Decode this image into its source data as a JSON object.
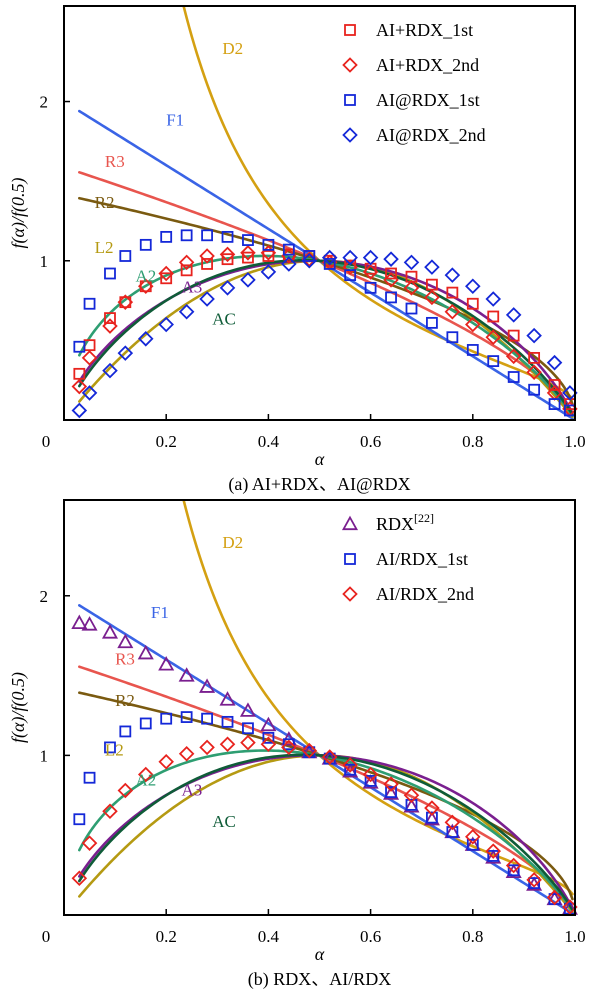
{
  "chart_data": [
    {
      "type": "line",
      "subcaption": "(a) AI+RDX、AI@RDX",
      "xlabel": "α",
      "ylabel": "f(α)/f(0.5)",
      "xlim": [
        0,
        1.0
      ],
      "ylim": [
        0,
        2.6
      ],
      "x_ticks": [
        {
          "v": 0,
          "t": "0"
        },
        {
          "v": 0.2,
          "t": "0.2"
        },
        {
          "v": 0.4,
          "t": "0.4"
        },
        {
          "v": 0.6,
          "t": "0.6"
        },
        {
          "v": 0.8,
          "t": "0.8"
        },
        {
          "v": 1.0,
          "t": "1.0"
        }
      ],
      "y_ticks": [
        {
          "v": 1,
          "t": "1"
        },
        {
          "v": 2,
          "t": "2"
        }
      ],
      "legend_position": "top-right",
      "model_curves": [
        {
          "name": "D2",
          "color": "#d4a012",
          "label_x": 0.31,
          "label_y": 2.3
        },
        {
          "name": "F1",
          "color": "#3a64e6",
          "label_x": 0.2,
          "label_y": 1.85
        },
        {
          "name": "R3",
          "color": "#e8554e",
          "label_x": 0.08,
          "label_y": 1.59
        },
        {
          "name": "R2",
          "color": "#7a5a10",
          "label_x": 0.06,
          "label_y": 1.33
        },
        {
          "name": "L2",
          "color": "#b59a12",
          "label_x": 0.06,
          "label_y": 1.05
        },
        {
          "name": "A2",
          "color": "#2e9e72",
          "label_x": 0.14,
          "label_y": 0.87
        },
        {
          "name": "A3",
          "color": "#7a1f8f",
          "label_x": 0.23,
          "label_y": 0.8
        },
        {
          "name": "AC",
          "color": "#0f5c38",
          "label_x": 0.29,
          "label_y": 0.6
        }
      ],
      "series": [
        {
          "name": "AI+RDX_1st",
          "marker": "square",
          "color": "#e8231e",
          "x": [
            0.03,
            0.05,
            0.09,
            0.12,
            0.16,
            0.2,
            0.24,
            0.28,
            0.32,
            0.36,
            0.4,
            0.44,
            0.48,
            0.52,
            0.56,
            0.6,
            0.64,
            0.68,
            0.72,
            0.76,
            0.8,
            0.84,
            0.88,
            0.92,
            0.96,
            0.99
          ],
          "y": [
            0.29,
            0.47,
            0.64,
            0.74,
            0.84,
            0.89,
            0.94,
            0.98,
            1.01,
            1.02,
            1.03,
            1.04,
            1.03,
            1.0,
            0.97,
            0.95,
            0.92,
            0.9,
            0.85,
            0.8,
            0.73,
            0.65,
            0.53,
            0.39,
            0.22,
            0.1
          ]
        },
        {
          "name": "AI+RDX_2nd",
          "marker": "diamond",
          "color": "#e8231e",
          "x": [
            0.03,
            0.05,
            0.09,
            0.12,
            0.16,
            0.2,
            0.24,
            0.28,
            0.32,
            0.36,
            0.4,
            0.44,
            0.48,
            0.52,
            0.56,
            0.6,
            0.64,
            0.68,
            0.72,
            0.76,
            0.8,
            0.84,
            0.88,
            0.92,
            0.96,
            0.99
          ],
          "y": [
            0.21,
            0.39,
            0.59,
            0.74,
            0.84,
            0.92,
            0.99,
            1.03,
            1.04,
            1.05,
            1.05,
            1.03,
            1.01,
            0.99,
            0.96,
            0.93,
            0.88,
            0.83,
            0.77,
            0.68,
            0.6,
            0.52,
            0.4,
            0.3,
            0.17,
            0.07
          ]
        },
        {
          "name": "AI@RDX_1st",
          "marker": "square",
          "color": "#1428d8",
          "x": [
            0.03,
            0.05,
            0.09,
            0.12,
            0.16,
            0.2,
            0.24,
            0.28,
            0.32,
            0.36,
            0.4,
            0.44,
            0.48,
            0.52,
            0.56,
            0.6,
            0.64,
            0.68,
            0.72,
            0.76,
            0.8,
            0.84,
            0.88,
            0.92,
            0.96,
            0.99
          ],
          "y": [
            0.46,
            0.73,
            0.92,
            1.03,
            1.1,
            1.15,
            1.16,
            1.16,
            1.15,
            1.13,
            1.1,
            1.07,
            1.03,
            0.98,
            0.91,
            0.83,
            0.77,
            0.7,
            0.61,
            0.52,
            0.44,
            0.37,
            0.27,
            0.19,
            0.1,
            0.06
          ]
        },
        {
          "name": "AI@RDX_2nd",
          "marker": "diamond",
          "color": "#1428d8",
          "x": [
            0.03,
            0.05,
            0.09,
            0.12,
            0.16,
            0.2,
            0.24,
            0.28,
            0.32,
            0.36,
            0.4,
            0.44,
            0.48,
            0.52,
            0.56,
            0.6,
            0.64,
            0.68,
            0.72,
            0.76,
            0.8,
            0.84,
            0.88,
            0.92,
            0.96,
            0.99
          ],
          "y": [
            0.06,
            0.17,
            0.31,
            0.42,
            0.51,
            0.6,
            0.68,
            0.76,
            0.83,
            0.88,
            0.93,
            0.98,
            1.0,
            1.02,
            1.02,
            1.02,
            1.01,
            0.99,
            0.96,
            0.91,
            0.84,
            0.76,
            0.66,
            0.53,
            0.36,
            0.17
          ]
        }
      ]
    },
    {
      "type": "line",
      "subcaption": "(b) RDX、AI/RDX",
      "xlabel": "α",
      "ylabel": "f(α)/f(0.5)",
      "xlim": [
        0,
        1.0
      ],
      "ylim": [
        0,
        2.6
      ],
      "x_ticks": [
        {
          "v": 0,
          "t": "0"
        },
        {
          "v": 0.2,
          "t": "0.2"
        },
        {
          "v": 0.4,
          "t": "0.4"
        },
        {
          "v": 0.6,
          "t": "0.6"
        },
        {
          "v": 0.8,
          "t": "0.8"
        },
        {
          "v": 1.0,
          "t": "1.0"
        }
      ],
      "y_ticks": [
        {
          "v": 1,
          "t": "1"
        },
        {
          "v": 2,
          "t": "2"
        }
      ],
      "legend_position": "top-right",
      "model_curves": [
        {
          "name": "D2",
          "color": "#d4a012",
          "label_x": 0.31,
          "label_y": 2.3
        },
        {
          "name": "F1",
          "color": "#3a64e6",
          "label_x": 0.17,
          "label_y": 1.86
        },
        {
          "name": "R3",
          "color": "#e8554e",
          "label_x": 0.1,
          "label_y": 1.57
        },
        {
          "name": "R2",
          "color": "#7a5a10",
          "label_x": 0.1,
          "label_y": 1.31
        },
        {
          "name": "L2",
          "color": "#b59a12",
          "label_x": 0.08,
          "label_y": 1.0
        },
        {
          "name": "A2",
          "color": "#2e9e72",
          "label_x": 0.14,
          "label_y": 0.81
        },
        {
          "name": "A3",
          "color": "#7a1f8f",
          "label_x": 0.23,
          "label_y": 0.75
        },
        {
          "name": "AC",
          "color": "#0f5c38",
          "label_x": 0.29,
          "label_y": 0.55
        }
      ],
      "series": [
        {
          "name": "RDX",
          "legend_superscript": "[22]",
          "marker": "triangle",
          "color": "#7a1f8f",
          "x": [
            0.03,
            0.05,
            0.09,
            0.12,
            0.16,
            0.2,
            0.24,
            0.28,
            0.32,
            0.36,
            0.4,
            0.44,
            0.48,
            0.52,
            0.56,
            0.6,
            0.64,
            0.68,
            0.72,
            0.76,
            0.8,
            0.84,
            0.88,
            0.92,
            0.96,
            0.99
          ],
          "y": [
            1.83,
            1.82,
            1.77,
            1.71,
            1.64,
            1.57,
            1.5,
            1.43,
            1.35,
            1.28,
            1.19,
            1.1,
            1.02,
            0.98,
            0.9,
            0.83,
            0.76,
            0.68,
            0.6,
            0.52,
            0.44,
            0.36,
            0.27,
            0.19,
            0.1,
            0.04
          ]
        },
        {
          "name": "AI/RDX_1st",
          "marker": "square",
          "color": "#1428d8",
          "x": [
            0.03,
            0.05,
            0.09,
            0.12,
            0.16,
            0.2,
            0.24,
            0.28,
            0.32,
            0.36,
            0.4,
            0.44,
            0.48,
            0.52,
            0.56,
            0.6,
            0.64,
            0.68,
            0.72,
            0.76,
            0.8,
            0.84,
            0.88,
            0.92,
            0.96,
            0.99
          ],
          "y": [
            0.6,
            0.86,
            1.05,
            1.15,
            1.2,
            1.23,
            1.24,
            1.23,
            1.21,
            1.17,
            1.11,
            1.07,
            1.02,
            0.98,
            0.91,
            0.84,
            0.77,
            0.69,
            0.61,
            0.52,
            0.44,
            0.37,
            0.28,
            0.2,
            0.1,
            0.04
          ]
        },
        {
          "name": "AI/RDX_2nd",
          "marker": "diamond",
          "color": "#e8231e",
          "x": [
            0.03,
            0.05,
            0.09,
            0.12,
            0.16,
            0.2,
            0.24,
            0.28,
            0.32,
            0.36,
            0.4,
            0.44,
            0.48,
            0.52,
            0.56,
            0.6,
            0.64,
            0.68,
            0.72,
            0.76,
            0.8,
            0.84,
            0.88,
            0.92,
            0.96,
            0.99
          ],
          "y": [
            0.23,
            0.45,
            0.65,
            0.78,
            0.88,
            0.96,
            1.01,
            1.05,
            1.07,
            1.08,
            1.07,
            1.05,
            1.03,
            0.99,
            0.94,
            0.88,
            0.82,
            0.75,
            0.67,
            0.58,
            0.49,
            0.4,
            0.31,
            0.22,
            0.11,
            0.05
          ]
        }
      ]
    }
  ]
}
